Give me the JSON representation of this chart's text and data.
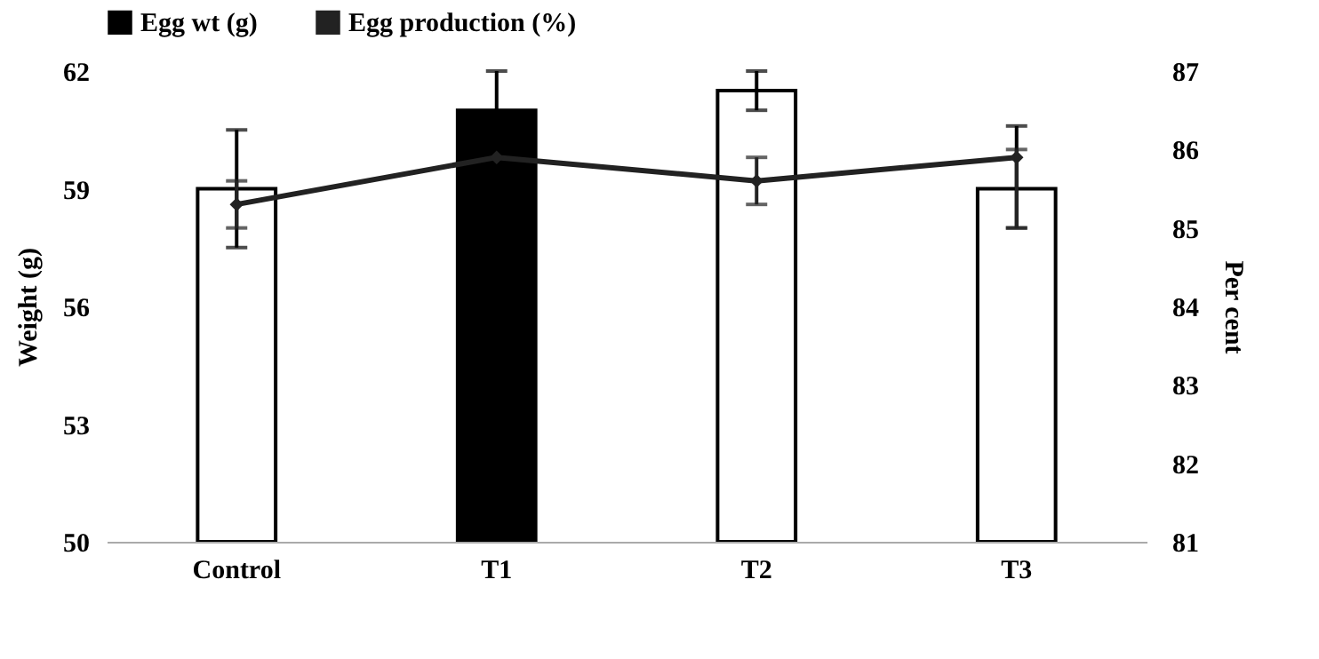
{
  "chart_data": {
    "type": "bar",
    "categories": [
      "Control",
      "T1",
      "T2",
      "T3"
    ],
    "ylabel": "Weight (g)",
    "y2label": "Per cent",
    "ylim": [
      50,
      62
    ],
    "yticks": [
      50,
      53,
      56,
      59,
      62
    ],
    "y2lim": [
      81,
      87
    ],
    "y2ticks": [
      81,
      82,
      83,
      84,
      85,
      86,
      87
    ],
    "grid": false,
    "legend": "top",
    "series": [
      {
        "name": "Egg wt (g)",
        "color": "#000000",
        "colors": [
          "#ffffff",
          "#000000",
          "#ffffff",
          "#ffffff"
        ],
        "values": [
          59.0,
          61.0,
          61.5,
          59.0
        ],
        "errors": [
          1.5,
          1.0,
          0.5,
          [
            58.0,
            60.6
          ]
        ]
      },
      {
        "name": "Egg production (%)",
        "type": "line",
        "axis": "y2",
        "color": "#222222",
        "marker": "diamond",
        "values": [
          85.3,
          85.9,
          85.6,
          85.9
        ],
        "errors": [
          0.3,
          null,
          0.3,
          [
            85.0,
            86.0
          ]
        ]
      }
    ]
  }
}
